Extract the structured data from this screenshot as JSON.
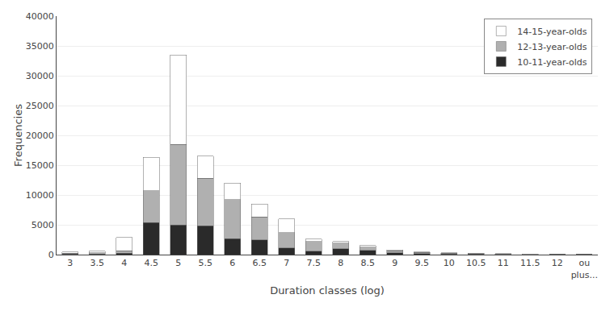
{
  "chart_data": {
    "type": "bar",
    "stacked": true,
    "categories": [
      "3",
      "3.5",
      "4",
      "4.5",
      "5",
      "5.5",
      "6",
      "6.5",
      "7",
      "7.5",
      "8",
      "8.5",
      "9",
      "9.5",
      "10",
      "10.5",
      "11",
      "11.5",
      "12",
      "ou\nplus..."
    ],
    "series": [
      {
        "name": "10-11-year-olds",
        "color": "#2a2a2a",
        "values": [
          100,
          120,
          250,
          5400,
          5000,
          4800,
          2700,
          2500,
          1100,
          600,
          1000,
          700,
          300,
          150,
          100,
          70,
          40,
          25,
          15,
          10
        ]
      },
      {
        "name": "12-13-year-olds",
        "color": "#b0b0b0",
        "values": [
          150,
          200,
          400,
          5300,
          13500,
          8000,
          6500,
          3800,
          2600,
          1600,
          900,
          550,
          350,
          200,
          130,
          80,
          50,
          30,
          20,
          15
        ]
      },
      {
        "name": "14-15-year-olds",
        "color": "#ffffff",
        "values": [
          200,
          250,
          2200,
          5600,
          15000,
          3700,
          2800,
          2200,
          2300,
          400,
          300,
          250,
          150,
          100,
          80,
          60,
          50,
          30,
          20,
          20
        ]
      }
    ],
    "xlabel": "Duration classes (log)",
    "ylabel": "Frequencies",
    "ylim": [
      0,
      40000
    ],
    "yticks": [
      0,
      5000,
      10000,
      15000,
      20000,
      25000,
      30000,
      35000,
      40000
    ],
    "grid": true,
    "legend": "upper right"
  }
}
